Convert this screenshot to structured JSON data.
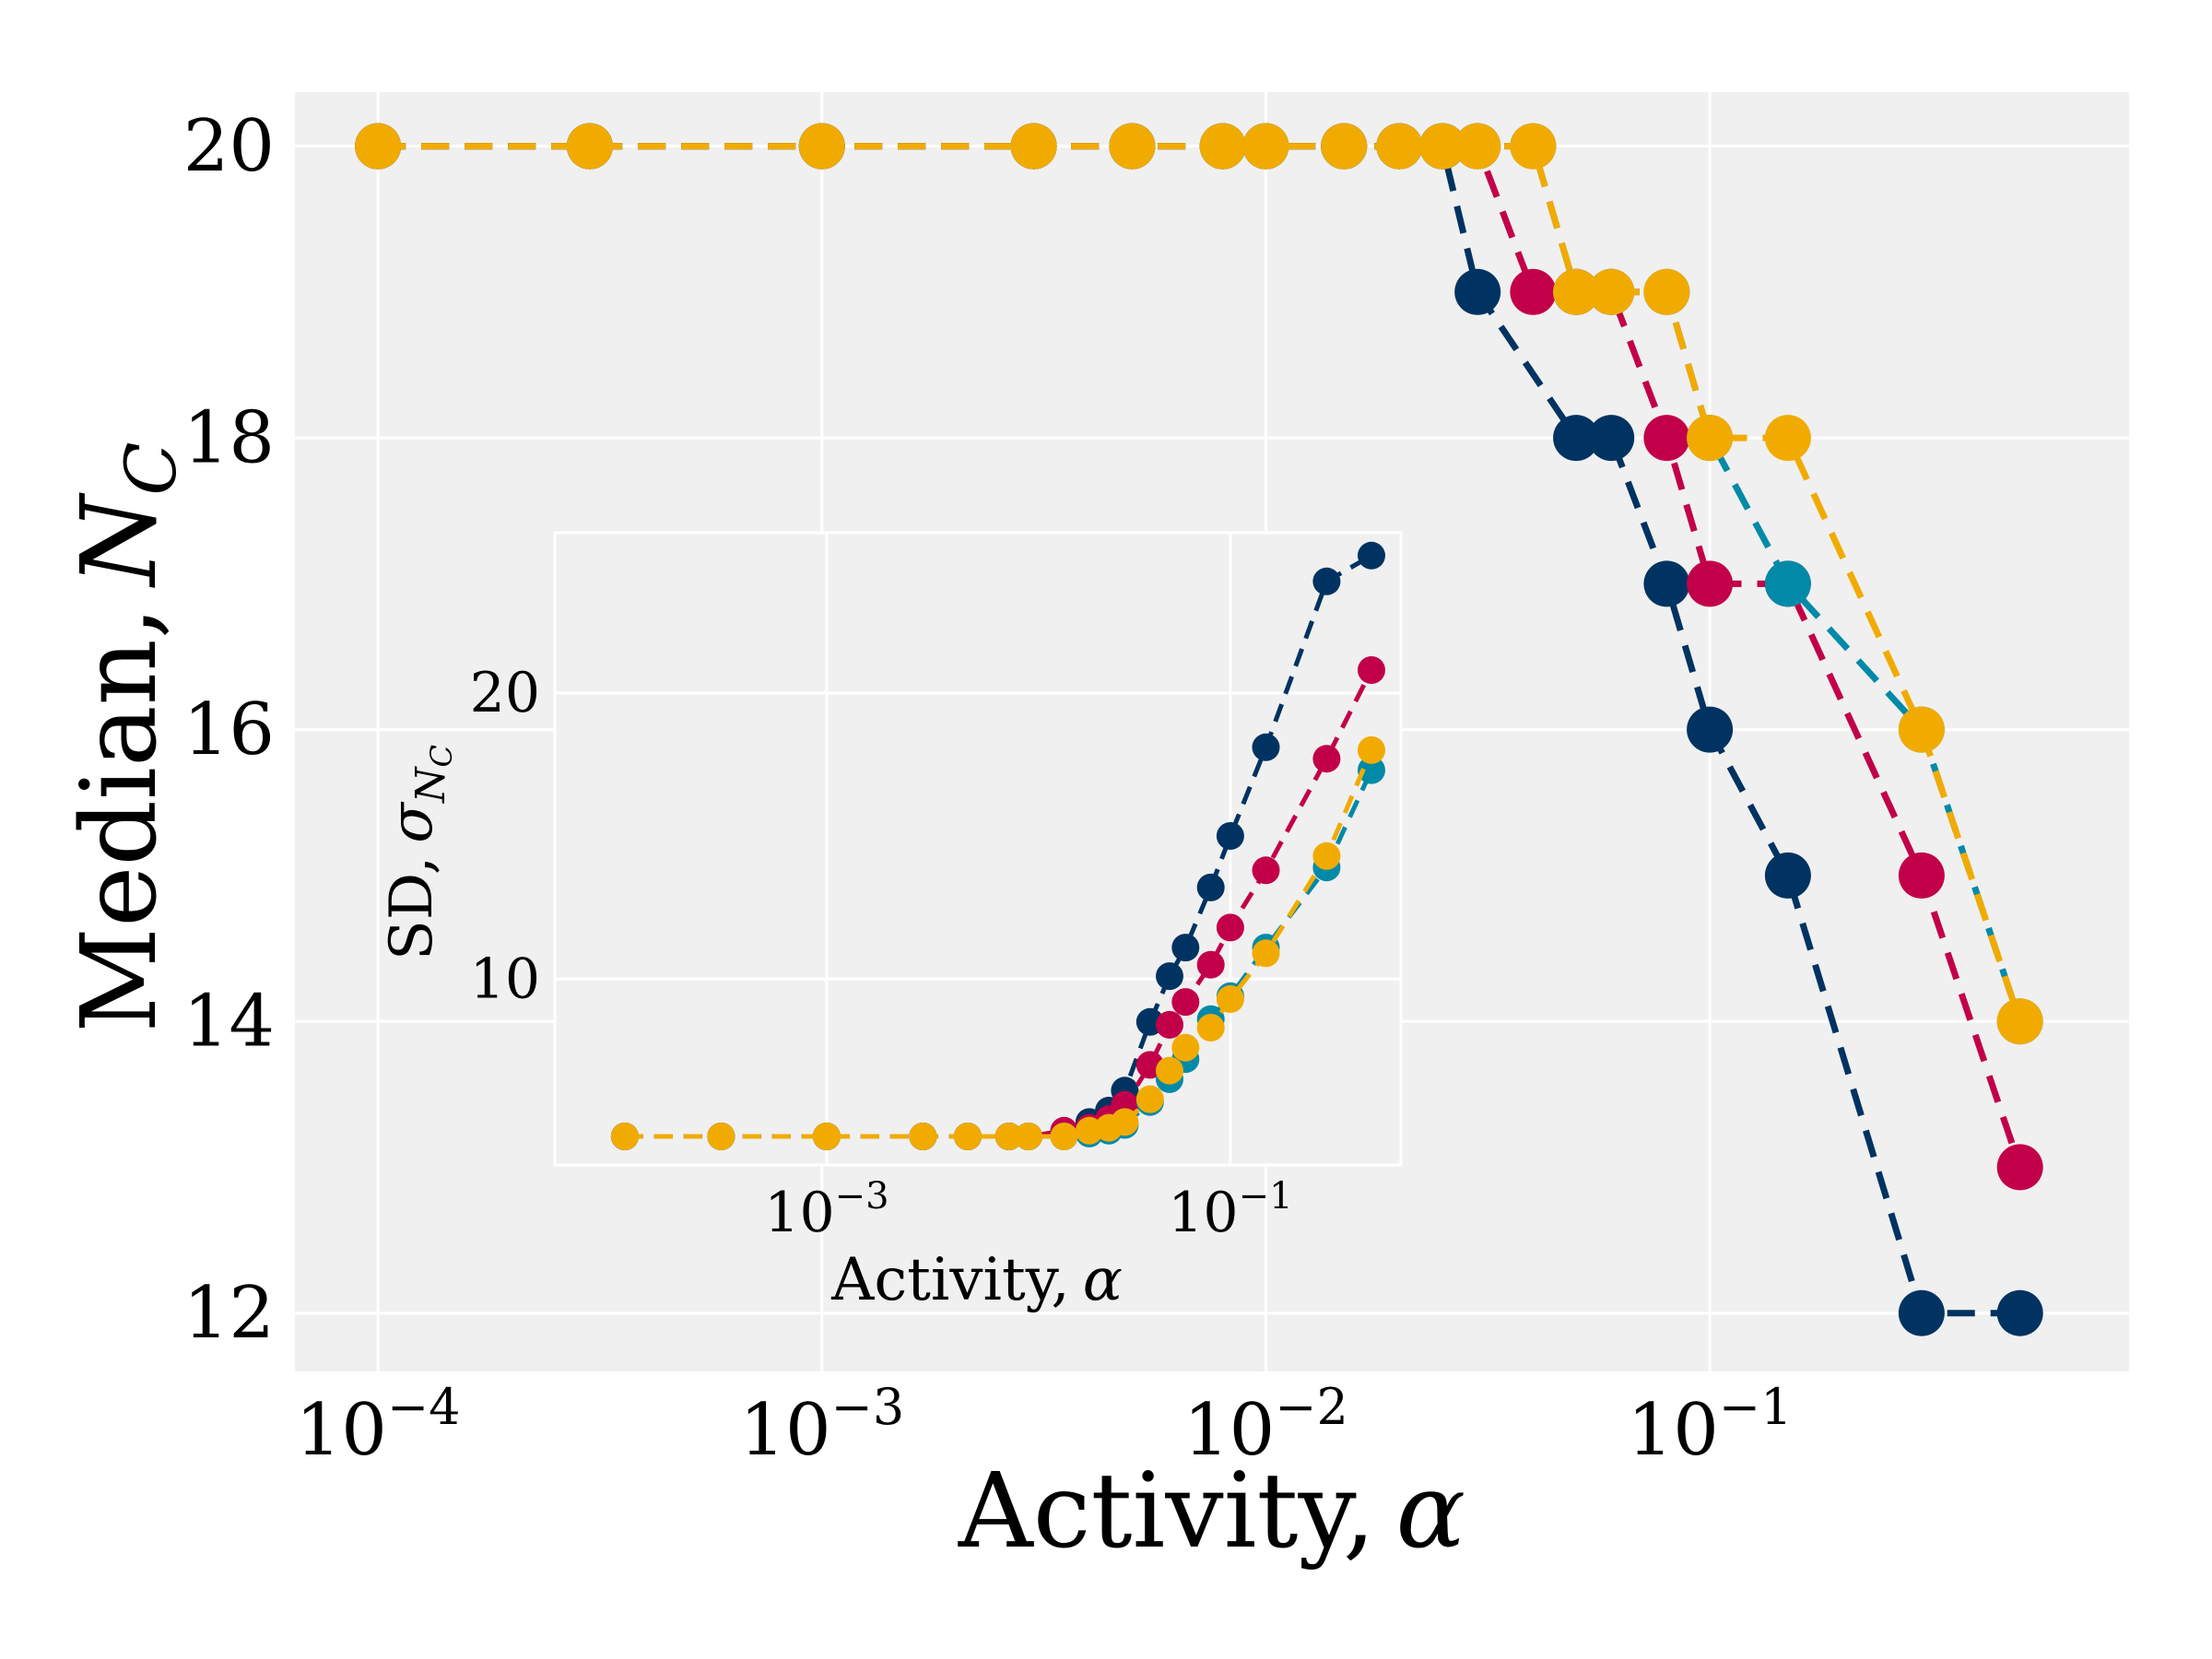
{
  "chart_data": [
    {
      "type": "line",
      "role": "main",
      "xlabel": "Activity,",
      "xlabel_symbol": "α",
      "ylabel": "Median,",
      "ylabel_symbol": "N",
      "ylabel_sub": "C",
      "xscale": "log",
      "xlim": [
        6.5e-05,
        0.88
      ],
      "ylim": [
        11.6,
        20.37
      ],
      "grid": true,
      "x_ticks": [
        {
          "value": 0.0001,
          "base": "10",
          "exp": "−4"
        },
        {
          "value": 0.001,
          "base": "10",
          "exp": "−3"
        },
        {
          "value": 0.01,
          "base": "10",
          "exp": "−2"
        },
        {
          "value": 0.1,
          "base": "10",
          "exp": "−1"
        }
      ],
      "y_ticks": [
        {
          "value": 12,
          "label": "12"
        },
        {
          "value": 14,
          "label": "14"
        },
        {
          "value": 16,
          "label": "16"
        },
        {
          "value": 18,
          "label": "18"
        },
        {
          "value": 20,
          "label": "20"
        }
      ],
      "series": [
        {
          "color": "#003361",
          "x": [
            0.0001,
            0.0003,
            0.001,
            0.003,
            0.005,
            0.008,
            0.01,
            0.015,
            0.02,
            0.025,
            0.03,
            0.05,
            0.06,
            0.08,
            0.1,
            0.15,
            0.3,
            0.5
          ],
          "y": [
            20,
            20,
            20,
            20,
            20,
            20,
            20,
            20,
            20,
            20,
            19,
            18,
            18,
            17,
            16,
            15,
            12,
            12
          ]
        },
        {
          "color": "#c20049",
          "x": [
            0.0001,
            0.0003,
            0.001,
            0.003,
            0.005,
            0.008,
            0.01,
            0.015,
            0.02,
            0.025,
            0.03,
            0.04,
            0.05,
            0.06,
            0.08,
            0.1,
            0.15,
            0.3,
            0.5
          ],
          "y": [
            20,
            20,
            20,
            20,
            20,
            20,
            20,
            20,
            20,
            20,
            20,
            19,
            19,
            19,
            18,
            17,
            17,
            15,
            13
          ]
        },
        {
          "color": "#008aa8",
          "x": [
            0.0001,
            0.0003,
            0.001,
            0.003,
            0.005,
            0.008,
            0.01,
            0.015,
            0.02,
            0.025,
            0.03,
            0.04,
            0.05,
            0.06,
            0.08,
            0.1,
            0.15,
            0.3,
            0.5
          ],
          "y": [
            20,
            20,
            20,
            20,
            20,
            20,
            20,
            20,
            20,
            20,
            20,
            20,
            19,
            19,
            19,
            18,
            17,
            16,
            14
          ]
        },
        {
          "color": "#f1ab00",
          "x": [
            0.0001,
            0.0003,
            0.001,
            0.003,
            0.005,
            0.008,
            0.01,
            0.015,
            0.02,
            0.025,
            0.03,
            0.04,
            0.05,
            0.06,
            0.08,
            0.1,
            0.15,
            0.3,
            0.5
          ],
          "y": [
            20,
            20,
            20,
            20,
            20,
            20,
            20,
            20,
            20,
            20,
            20,
            20,
            19,
            19,
            19,
            18,
            18,
            16,
            14
          ]
        }
      ]
    },
    {
      "type": "line",
      "role": "inset",
      "xlabel": "Activity,",
      "xlabel_symbol": "α",
      "ylabel": "SD,",
      "ylabel_symbol": "σ",
      "ylabel_sub": "N",
      "ylabel_subsub": "C",
      "xscale": "log",
      "xlim": [
        4.5e-05,
        0.7
      ],
      "ylim": [
        3.5,
        25.6
      ],
      "grid": true,
      "x_ticks": [
        {
          "value": 0.001,
          "base": "10",
          "exp": "−3"
        },
        {
          "value": 0.1,
          "base": "10",
          "exp": "−1"
        }
      ],
      "y_ticks": [
        {
          "value": 10,
          "label": "10"
        },
        {
          "value": 20,
          "label": "20"
        }
      ],
      "series": [
        {
          "color": "#003361",
          "x": [
            0.0001,
            0.0003,
            0.001,
            0.003,
            0.005,
            0.008,
            0.01,
            0.015,
            0.02,
            0.025,
            0.03,
            0.04,
            0.05,
            0.06,
            0.08,
            0.1,
            0.15,
            0.3,
            0.5
          ],
          "y": [
            4.5,
            4.5,
            4.5,
            4.5,
            4.5,
            4.5,
            4.5,
            4.6,
            5.0,
            5.4,
            6.1,
            8.5,
            10.1,
            11.1,
            13.2,
            15.0,
            18.1,
            23.9,
            24.8
          ]
        },
        {
          "color": "#c20049",
          "x": [
            0.0001,
            0.0003,
            0.001,
            0.003,
            0.005,
            0.008,
            0.01,
            0.015,
            0.02,
            0.025,
            0.03,
            0.04,
            0.05,
            0.06,
            0.08,
            0.1,
            0.15,
            0.3,
            0.5
          ],
          "y": [
            4.5,
            4.5,
            4.5,
            4.5,
            4.5,
            4.5,
            4.5,
            4.7,
            4.8,
            5.1,
            5.6,
            7.0,
            8.4,
            9.2,
            10.5,
            11.8,
            13.8,
            17.7,
            20.8
          ]
        },
        {
          "color": "#008aa8",
          "x": [
            0.0001,
            0.0003,
            0.001,
            0.003,
            0.005,
            0.008,
            0.01,
            0.015,
            0.02,
            0.025,
            0.03,
            0.04,
            0.05,
            0.06,
            0.08,
            0.1,
            0.15,
            0.3,
            0.5
          ],
          "y": [
            4.5,
            4.5,
            4.5,
            4.5,
            4.5,
            4.5,
            4.5,
            4.5,
            4.6,
            4.7,
            4.9,
            5.7,
            6.5,
            7.2,
            8.6,
            9.4,
            11.1,
            13.9,
            17.3
          ]
        },
        {
          "color": "#f1ab00",
          "x": [
            0.0001,
            0.0003,
            0.001,
            0.003,
            0.005,
            0.008,
            0.01,
            0.015,
            0.02,
            0.025,
            0.03,
            0.04,
            0.05,
            0.06,
            0.08,
            0.1,
            0.15,
            0.3,
            0.5
          ],
          "y": [
            4.5,
            4.5,
            4.5,
            4.5,
            4.5,
            4.5,
            4.5,
            4.5,
            4.7,
            4.8,
            5.0,
            5.8,
            6.8,
            7.6,
            8.3,
            9.3,
            10.9,
            14.3,
            18.0
          ]
        }
      ]
    }
  ]
}
